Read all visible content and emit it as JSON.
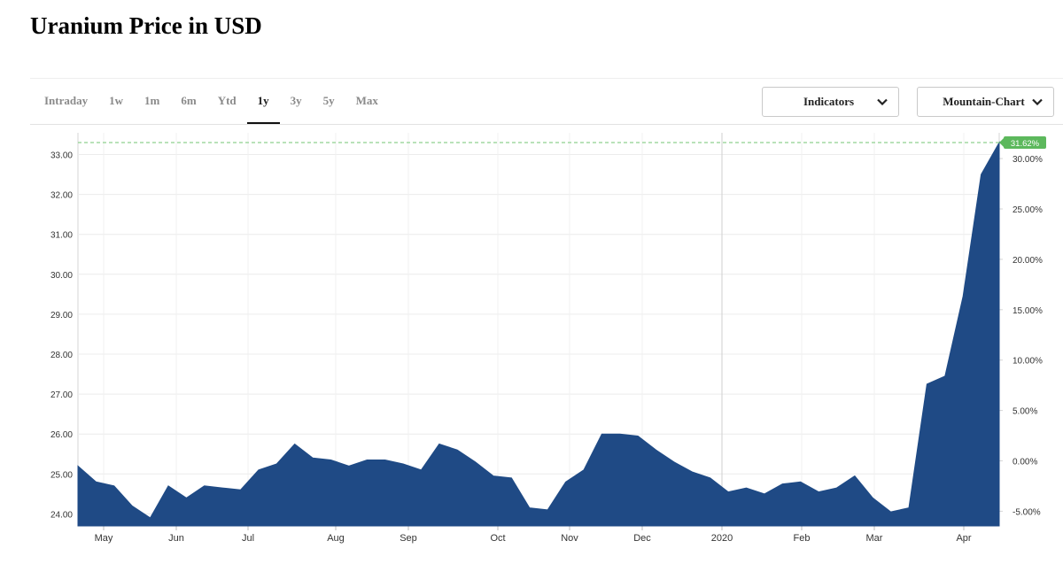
{
  "page": {
    "title": "Uranium Price in USD"
  },
  "tabs": [
    {
      "label": "Intraday",
      "active": false
    },
    {
      "label": "1w",
      "active": false
    },
    {
      "label": "1m",
      "active": false
    },
    {
      "label": "6m",
      "active": false
    },
    {
      "label": "Ytd",
      "active": false
    },
    {
      "label": "1y",
      "active": true
    },
    {
      "label": "3y",
      "active": false
    },
    {
      "label": "5y",
      "active": false
    },
    {
      "label": "Max",
      "active": false
    }
  ],
  "controls": {
    "indicators_label": "Indicators",
    "chart_type_label": "Mountain-Chart"
  },
  "colors": {
    "fill": "#1f4a85",
    "badge": "#5cb85c",
    "guide": "#8fd18f"
  },
  "chart_data": {
    "type": "area",
    "title": "",
    "xlabel": "",
    "ylabel": "",
    "ylim": [
      23.9,
      33.4
    ],
    "y_ticks": [
      "24.00",
      "25.00",
      "26.00",
      "27.00",
      "28.00",
      "29.00",
      "30.00",
      "31.00",
      "32.00",
      "33.00"
    ],
    "y2_ticks": [
      "-5.00%",
      "0.00%",
      "5.00%",
      "10.00%",
      "15.00%",
      "20.00%",
      "25.00%",
      "30.00%"
    ],
    "x_labels": [
      "May",
      "Jun",
      "Jul",
      "Aug",
      "Sep",
      "Oct",
      "Nov",
      "Dec",
      "2020",
      "Feb",
      "Mar",
      "Apr"
    ],
    "current_change_label": "31.62%",
    "current_value": 33.3,
    "grid": true,
    "series": [
      {
        "values": [
          25.2,
          24.8,
          24.7,
          24.2,
          23.9,
          24.7,
          24.4,
          24.7,
          24.65,
          24.6,
          25.1,
          25.25,
          25.75,
          25.4,
          25.35,
          25.2,
          25.35,
          25.35,
          25.25,
          25.1,
          25.75,
          25.6,
          25.3,
          24.95,
          24.9,
          24.15,
          24.1,
          24.8,
          25.1,
          26.0,
          26.0,
          25.95,
          25.6,
          25.3,
          25.05,
          24.9,
          24.55,
          24.65,
          24.5,
          24.75,
          24.8,
          24.55,
          24.65,
          24.95,
          24.4,
          24.05,
          24.15,
          27.25,
          27.45,
          29.45,
          32.5,
          33.3
        ]
      }
    ]
  }
}
